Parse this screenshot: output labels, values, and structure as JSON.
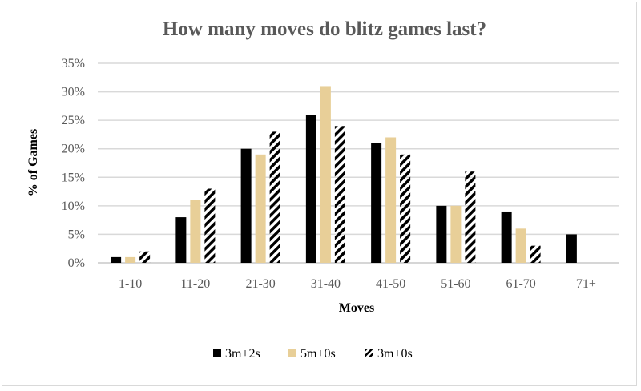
{
  "chart_data": {
    "type": "bar",
    "title": "How many moves do blitz games last?",
    "xlabel": "Moves",
    "ylabel": "% of Games",
    "ylim": [
      0,
      35
    ],
    "yticks": [
      "0%",
      "5%",
      "10%",
      "15%",
      "20%",
      "25%",
      "30%",
      "35%"
    ],
    "grid": true,
    "legend_position": "bottom",
    "categories": [
      "1-10",
      "11-20",
      "21-30",
      "31-40",
      "41-50",
      "51-60",
      "61-70",
      "71+"
    ],
    "series": [
      {
        "name": "3m+2s",
        "color": "#000000",
        "pattern": "solid",
        "values": [
          1,
          8,
          20,
          26,
          21,
          10,
          9,
          5
        ]
      },
      {
        "name": "5m+0s",
        "color": "#e8cf98",
        "pattern": "solid",
        "values": [
          1,
          11,
          19,
          31,
          22,
          10,
          6,
          0
        ]
      },
      {
        "name": "3m+0s",
        "color": "#000000",
        "pattern": "hatch",
        "values": [
          2,
          13,
          23,
          24,
          19,
          16,
          3,
          0
        ]
      }
    ]
  }
}
